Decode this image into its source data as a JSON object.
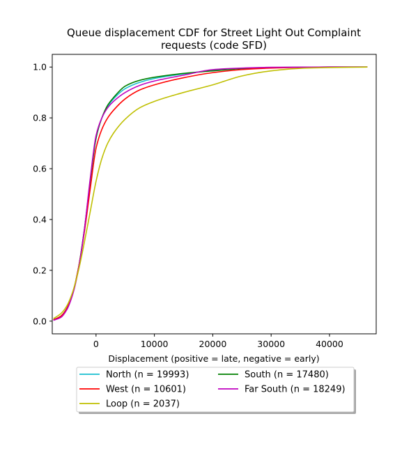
{
  "chart_data": {
    "type": "line",
    "title": "Queue displacement CDF for Street Light Out Complaint\nrequests (code SFD)",
    "xlabel": "Displacement (positive = late, negative = early)",
    "ylabel": "",
    "xlim": [
      -7500,
      48000
    ],
    "ylim": [
      -0.05,
      1.05
    ],
    "xticks": [
      0,
      10000,
      20000,
      30000,
      40000
    ],
    "yticks": [
      0.0,
      0.2,
      0.4,
      0.6,
      0.8,
      1.0
    ],
    "xtick_labels": [
      "0",
      "10000",
      "20000",
      "30000",
      "40000"
    ],
    "ytick_labels": [
      "0.0",
      "0.2",
      "0.4",
      "0.6",
      "0.8",
      "1.0"
    ],
    "grid": false,
    "legend_position": "below",
    "series": [
      {
        "name": "North (n = 19993)",
        "color": "#17becf",
        "x": [
          -7300,
          -6000,
          -5000,
          -4000,
          -3000,
          -2000,
          -1000,
          0,
          1000,
          2000,
          3000,
          5000,
          7500,
          10000,
          15000,
          20000,
          25000,
          30000,
          40000,
          46500
        ],
        "y": [
          0.005,
          0.02,
          0.05,
          0.11,
          0.21,
          0.36,
          0.55,
          0.72,
          0.8,
          0.845,
          0.875,
          0.915,
          0.94,
          0.955,
          0.973,
          0.987,
          0.995,
          0.998,
          1.0,
          1.0
        ]
      },
      {
        "name": "South (n = 17480)",
        "color": "#008000",
        "x": [
          -7300,
          -6000,
          -5000,
          -4000,
          -3000,
          -2000,
          -1000,
          0,
          1000,
          2000,
          3000,
          5000,
          7500,
          10000,
          15000,
          20000,
          25000,
          30000,
          40000,
          46500
        ],
        "y": [
          0.005,
          0.02,
          0.05,
          0.11,
          0.21,
          0.36,
          0.55,
          0.72,
          0.8,
          0.85,
          0.88,
          0.925,
          0.948,
          0.96,
          0.975,
          0.985,
          0.994,
          0.998,
          1.0,
          1.0
        ]
      },
      {
        "name": "West (n = 10601)",
        "color": "#ff0000",
        "x": [
          -7300,
          -6000,
          -5000,
          -4000,
          -3000,
          -2000,
          -1000,
          0,
          1000,
          2000,
          3000,
          5000,
          7500,
          10000,
          15000,
          20000,
          25000,
          30000,
          40000,
          46500
        ],
        "y": [
          0.005,
          0.02,
          0.05,
          0.11,
          0.21,
          0.35,
          0.52,
          0.68,
          0.755,
          0.8,
          0.83,
          0.875,
          0.91,
          0.93,
          0.958,
          0.978,
          0.99,
          0.996,
          1.0,
          1.0
        ]
      },
      {
        "name": "Far South (n = 18249)",
        "color": "#bf00bf",
        "x": [
          -7300,
          -6000,
          -5000,
          -4000,
          -3000,
          -2000,
          -1000,
          0,
          1000,
          2000,
          3000,
          5000,
          7500,
          10000,
          15000,
          20000,
          25000,
          30000,
          40000,
          46500
        ],
        "y": [
          0.003,
          0.015,
          0.045,
          0.105,
          0.205,
          0.36,
          0.56,
          0.73,
          0.8,
          0.84,
          0.865,
          0.9,
          0.928,
          0.945,
          0.968,
          0.99,
          0.996,
          0.999,
          1.0,
          1.0
        ]
      },
      {
        "name": "Loop (n = 2037)",
        "color": "#bfbf00",
        "x": [
          -7300,
          -6000,
          -5000,
          -4000,
          -3000,
          -2000,
          -1000,
          0,
          1000,
          2000,
          3000,
          5000,
          7500,
          10000,
          15000,
          20000,
          25000,
          30000,
          35000,
          40000,
          46500
        ],
        "y": [
          0.01,
          0.03,
          0.06,
          0.115,
          0.2,
          0.31,
          0.43,
          0.55,
          0.64,
          0.7,
          0.74,
          0.795,
          0.84,
          0.865,
          0.9,
          0.93,
          0.965,
          0.985,
          0.995,
          0.998,
          1.0
        ]
      }
    ],
    "legend": [
      [
        "North (n = 19993)",
        "South (n = 17480)"
      ],
      [
        "West (n = 10601)",
        "Far South (n = 18249)"
      ],
      [
        "Loop (n = 2037)"
      ]
    ]
  }
}
